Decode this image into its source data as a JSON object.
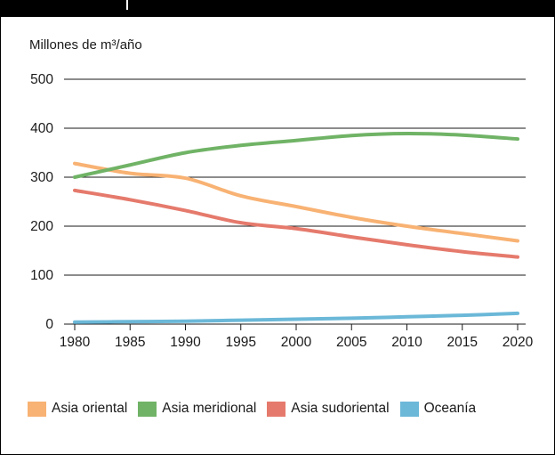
{
  "chart_data": {
    "type": "line",
    "title": "",
    "ylabel": "Millones de m³/año",
    "xlabel": "",
    "x": [
      1980,
      1985,
      1990,
      1995,
      2000,
      2005,
      2010,
      2015,
      2020
    ],
    "ylim": [
      0,
      500
    ],
    "yticks": [
      "0",
      "100",
      "200",
      "300",
      "400",
      "500"
    ],
    "xticks": [
      "1980",
      "1985",
      "1990",
      "1995",
      "2000",
      "2005",
      "2010",
      "2015",
      "2020"
    ],
    "grid": "horizontal",
    "legend_position": "bottom",
    "series": [
      {
        "name": "Asia oriental",
        "color": "#f8b273",
        "values": [
          328,
          308,
          298,
          262,
          240,
          218,
          200,
          185,
          170
        ]
      },
      {
        "name": "Asia meridional",
        "color": "#70b366",
        "values": [
          300,
          325,
          350,
          365,
          375,
          385,
          389,
          386,
          378
        ]
      },
      {
        "name": "Asia sudoriental",
        "color": "#e57a6c",
        "values": [
          273,
          254,
          232,
          207,
          195,
          178,
          162,
          148,
          137
        ]
      },
      {
        "name": "Oceanía",
        "color": "#6bb8d8",
        "values": [
          4,
          5,
          6,
          8,
          10,
          12,
          15,
          18,
          22
        ]
      }
    ]
  }
}
